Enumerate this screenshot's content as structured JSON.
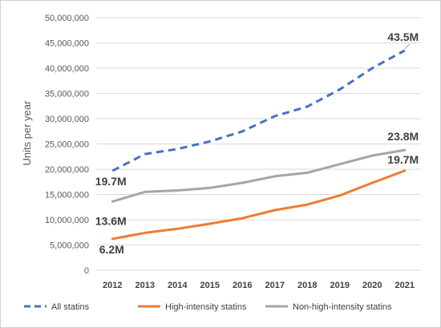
{
  "chart_data": {
    "type": "line",
    "categories": [
      "2012",
      "2013",
      "2014",
      "2015",
      "2016",
      "2017",
      "2018",
      "2019",
      "2020",
      "2021"
    ],
    "ylabel": "Units per year",
    "ylim": [
      0,
      50000000
    ],
    "yticks": [
      0,
      5000000,
      10000000,
      15000000,
      20000000,
      25000000,
      30000000,
      35000000,
      40000000,
      45000000,
      50000000
    ],
    "ytick_labels": [
      "0",
      "5,000,000",
      "10,000,000",
      "15,000,000",
      "20,000,000",
      "25,000,000",
      "30,000,000",
      "35,000,000",
      "40,000,000",
      "45,000,000",
      "50,000,000"
    ],
    "grid": true,
    "legend_position": "bottom",
    "series": [
      {
        "name": "All statins",
        "values": [
          19700000,
          23000000,
          24000000,
          25500000,
          27500000,
          30500000,
          32400000,
          35800000,
          40000000,
          43500000
        ],
        "color": "#4472C4",
        "dash": true,
        "labels": [
          {
            "index": 0,
            "text": "19.7M"
          },
          {
            "index": 9,
            "text": "43.5M"
          }
        ]
      },
      {
        "name": "High-intensity statins",
        "values": [
          6200000,
          7400000,
          8200000,
          9200000,
          10300000,
          11900000,
          13000000,
          14800000,
          17300000,
          19700000
        ],
        "color": "#ED7D31",
        "dash": false,
        "labels": [
          {
            "index": 0,
            "text": "6.2M"
          },
          {
            "index": 9,
            "text": "19.7M"
          }
        ]
      },
      {
        "name": "Non-high-intensity statins",
        "values": [
          13600000,
          15500000,
          15800000,
          16300000,
          17300000,
          18600000,
          19300000,
          21000000,
          22700000,
          23800000
        ],
        "color": "#A5A5A5",
        "dash": false,
        "labels": [
          {
            "index": 0,
            "text": "13.6M"
          },
          {
            "index": 9,
            "text": "23.8M"
          }
        ]
      }
    ]
  }
}
